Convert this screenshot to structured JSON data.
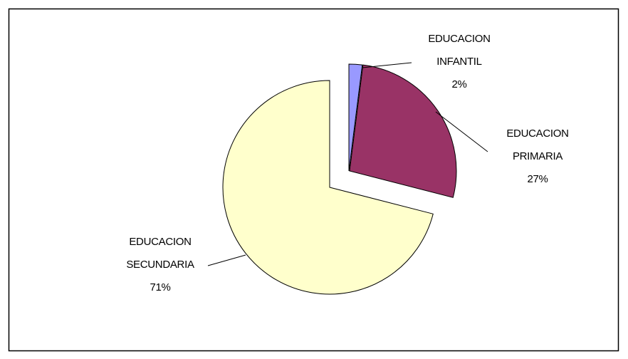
{
  "chart_data": {
    "type": "pie",
    "categories": [
      "EDUCACION INFANTIL",
      "EDUCACION PRIMARIA",
      "EDUCACION SECUNDARIA"
    ],
    "values": [
      2,
      27,
      71
    ],
    "value_labels": [
      "2%",
      "27%",
      "71%"
    ],
    "colors": [
      "#9999ff",
      "#993366",
      "#ffffcc"
    ]
  }
}
